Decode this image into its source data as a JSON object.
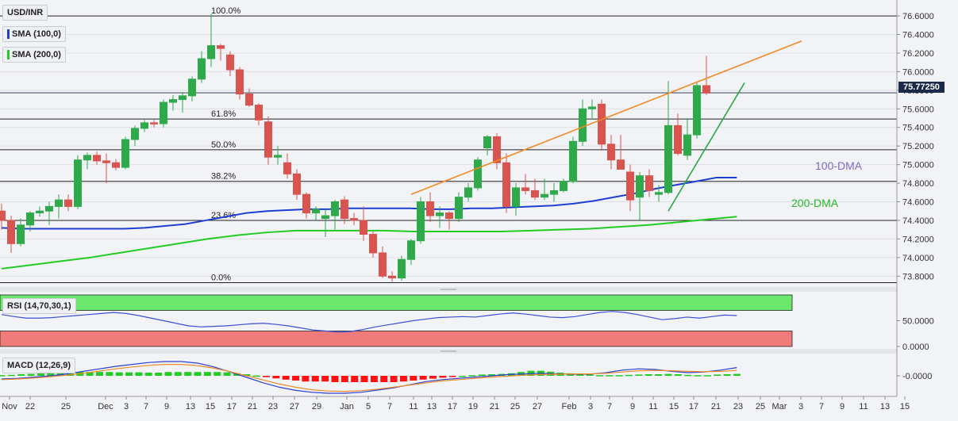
{
  "legend": {
    "symbol": "USD/INR",
    "sma100": "SMA (100,0)",
    "sma200": "SMA (200,0)",
    "rsi": "RSI (14,70,30,1)",
    "macd": "MACD (12,26,9)"
  },
  "colors": {
    "bull": "#2eaa4a",
    "bear": "#d9534f",
    "sma100": "#1c3fd1",
    "sma200": "#22cc22",
    "channel": "#f08a24",
    "support": "#2aa845",
    "rsi_band_high": "#6be86b",
    "rsi_band_low": "#f07b7b",
    "price_tag": "#1b2a4a"
  },
  "annotations": {
    "dma100": "100-DMA",
    "dma200": "200-DMA",
    "last_price": "75.77250",
    "rsi_level": "50.0000",
    "rsi_zero": "0.0000",
    "macd_level": "-0.0000"
  },
  "chart_data": [
    {
      "type": "candlestick",
      "title": "USD/INR",
      "y_ticks": [
        "76.6000",
        "76.4000",
        "76.2000",
        "76.0000",
        "75.8000",
        "75.6000",
        "75.4000",
        "75.2000",
        "75.0000",
        "74.8000",
        "74.6000",
        "74.4000",
        "74.2000",
        "74.0000",
        "73.8000"
      ],
      "ylim": [
        73.7,
        76.72
      ],
      "x_ticks": [
        "Nov",
        "22",
        "25",
        "Dec",
        "3",
        "7",
        "9",
        "13",
        "15",
        "17",
        "21",
        "23",
        "27",
        "29",
        "Jan",
        "5",
        "7",
        "11",
        "13",
        "17",
        "19",
        "21",
        "25",
        "27",
        "Feb",
        "3",
        "7",
        "9",
        "11",
        "15",
        "17",
        "21",
        "23",
        "25",
        "Mar",
        "3",
        "7",
        "9",
        "11",
        "13",
        "15"
      ],
      "fibonacci": [
        {
          "label": "100.0%",
          "value": 76.6
        },
        {
          "label": "61.8%",
          "value": 75.49
        },
        {
          "label": "50.0%",
          "value": 75.16
        },
        {
          "label": "38.2%",
          "value": 74.82
        },
        {
          "label": "23.6%",
          "value": 74.4
        },
        {
          "label": "0.0%",
          "value": 73.73
        }
      ],
      "last_price": 75.7725,
      "candles": [
        {
          "o": 74.5,
          "h": 74.58,
          "l": 74.3,
          "c": 74.4
        },
        {
          "o": 74.4,
          "h": 74.45,
          "l": 74.05,
          "c": 74.15
        },
        {
          "o": 74.15,
          "h": 74.42,
          "l": 74.12,
          "c": 74.35
        },
        {
          "o": 74.35,
          "h": 74.5,
          "l": 74.28,
          "c": 74.48
        },
        {
          "o": 74.48,
          "h": 74.55,
          "l": 74.44,
          "c": 74.5
        },
        {
          "o": 74.5,
          "h": 74.6,
          "l": 74.35,
          "c": 74.55
        },
        {
          "o": 74.55,
          "h": 74.68,
          "l": 74.42,
          "c": 74.62
        },
        {
          "o": 74.62,
          "h": 74.68,
          "l": 74.5,
          "c": 74.55
        },
        {
          "o": 74.55,
          "h": 75.1,
          "l": 74.52,
          "c": 75.05
        },
        {
          "o": 75.05,
          "h": 75.13,
          "l": 74.95,
          "c": 75.1
        },
        {
          "o": 75.1,
          "h": 75.14,
          "l": 75.0,
          "c": 75.04
        },
        {
          "o": 75.04,
          "h": 75.12,
          "l": 74.8,
          "c": 75.02
        },
        {
          "o": 75.02,
          "h": 75.06,
          "l": 74.94,
          "c": 74.97
        },
        {
          "o": 74.97,
          "h": 75.3,
          "l": 74.95,
          "c": 75.27
        },
        {
          "o": 75.27,
          "h": 75.42,
          "l": 75.2,
          "c": 75.39
        },
        {
          "o": 75.39,
          "h": 75.48,
          "l": 75.35,
          "c": 75.45
        },
        {
          "o": 75.45,
          "h": 75.48,
          "l": 75.4,
          "c": 75.44
        },
        {
          "o": 75.44,
          "h": 75.7,
          "l": 75.4,
          "c": 75.67
        },
        {
          "o": 75.67,
          "h": 75.75,
          "l": 75.58,
          "c": 75.7
        },
        {
          "o": 75.7,
          "h": 75.78,
          "l": 75.56,
          "c": 75.74
        },
        {
          "o": 75.74,
          "h": 75.95,
          "l": 75.68,
          "c": 75.92
        },
        {
          "o": 75.92,
          "h": 76.22,
          "l": 75.88,
          "c": 76.14
        },
        {
          "o": 76.14,
          "h": 76.62,
          "l": 76.05,
          "c": 76.28
        },
        {
          "o": 76.28,
          "h": 76.3,
          "l": 76.12,
          "c": 76.25
        },
        {
          "o": 76.18,
          "h": 76.22,
          "l": 75.95,
          "c": 76.02
        },
        {
          "o": 76.02,
          "h": 76.05,
          "l": 75.7,
          "c": 75.76
        },
        {
          "o": 75.76,
          "h": 75.82,
          "l": 75.62,
          "c": 75.64
        },
        {
          "o": 75.64,
          "h": 75.66,
          "l": 75.42,
          "c": 75.48
        },
        {
          "o": 75.46,
          "h": 75.52,
          "l": 75.0,
          "c": 75.08
        },
        {
          "o": 75.08,
          "h": 75.2,
          "l": 75.0,
          "c": 75.1
        },
        {
          "o": 75.02,
          "h": 75.12,
          "l": 74.85,
          "c": 74.9
        },
        {
          "o": 74.9,
          "h": 74.95,
          "l": 74.62,
          "c": 74.68
        },
        {
          "o": 74.68,
          "h": 74.7,
          "l": 74.42,
          "c": 74.48
        },
        {
          "o": 74.48,
          "h": 74.55,
          "l": 74.4,
          "c": 74.52
        },
        {
          "o": 74.42,
          "h": 74.52,
          "l": 74.22,
          "c": 74.45
        },
        {
          "o": 74.45,
          "h": 74.62,
          "l": 74.3,
          "c": 74.6
        },
        {
          "o": 74.62,
          "h": 74.66,
          "l": 74.36,
          "c": 74.42
        },
        {
          "o": 74.42,
          "h": 74.48,
          "l": 74.35,
          "c": 74.4
        },
        {
          "o": 74.4,
          "h": 74.55,
          "l": 74.18,
          "c": 74.25
        },
        {
          "o": 74.25,
          "h": 74.28,
          "l": 74.0,
          "c": 74.05
        },
        {
          "o": 74.05,
          "h": 74.12,
          "l": 73.78,
          "c": 73.8
        },
        {
          "o": 73.8,
          "h": 73.85,
          "l": 73.74,
          "c": 73.78
        },
        {
          "o": 73.78,
          "h": 74.02,
          "l": 73.75,
          "c": 73.98
        },
        {
          "o": 73.98,
          "h": 74.2,
          "l": 73.92,
          "c": 74.18
        },
        {
          "o": 74.18,
          "h": 74.65,
          "l": 74.15,
          "c": 74.6
        },
        {
          "o": 74.6,
          "h": 74.7,
          "l": 74.38,
          "c": 74.45
        },
        {
          "o": 74.45,
          "h": 74.55,
          "l": 74.32,
          "c": 74.48
        },
        {
          "o": 74.48,
          "h": 74.5,
          "l": 74.3,
          "c": 74.42
        },
        {
          "o": 74.42,
          "h": 74.7,
          "l": 74.38,
          "c": 74.65
        },
        {
          "o": 74.65,
          "h": 74.8,
          "l": 74.6,
          "c": 74.75
        },
        {
          "o": 74.75,
          "h": 75.08,
          "l": 74.72,
          "c": 75.05
        },
        {
          "o": 75.18,
          "h": 75.32,
          "l": 75.1,
          "c": 75.3
        },
        {
          "o": 75.3,
          "h": 75.34,
          "l": 74.95,
          "c": 75.02
        },
        {
          "o": 75.02,
          "h": 75.12,
          "l": 74.48,
          "c": 74.55
        },
        {
          "o": 74.55,
          "h": 74.8,
          "l": 74.45,
          "c": 74.75
        },
        {
          "o": 74.75,
          "h": 74.9,
          "l": 74.68,
          "c": 74.72
        },
        {
          "o": 74.72,
          "h": 74.85,
          "l": 74.62,
          "c": 74.65
        },
        {
          "o": 74.65,
          "h": 74.85,
          "l": 74.62,
          "c": 74.68
        },
        {
          "o": 74.68,
          "h": 74.8,
          "l": 74.6,
          "c": 74.72
        },
        {
          "o": 74.72,
          "h": 74.85,
          "l": 74.7,
          "c": 74.82
        },
        {
          "o": 74.82,
          "h": 75.3,
          "l": 74.8,
          "c": 75.25
        },
        {
          "o": 75.25,
          "h": 75.7,
          "l": 75.2,
          "c": 75.6
        },
        {
          "o": 75.6,
          "h": 75.7,
          "l": 75.5,
          "c": 75.62
        },
        {
          "o": 75.65,
          "h": 75.7,
          "l": 75.15,
          "c": 75.22
        },
        {
          "o": 75.22,
          "h": 75.32,
          "l": 74.95,
          "c": 75.05
        },
        {
          "o": 75.05,
          "h": 75.32,
          "l": 74.95,
          "c": 74.95
        },
        {
          "o": 74.92,
          "h": 75.0,
          "l": 74.5,
          "c": 74.62
        },
        {
          "o": 74.65,
          "h": 74.92,
          "l": 74.4,
          "c": 74.88
        },
        {
          "o": 74.88,
          "h": 74.95,
          "l": 74.65,
          "c": 74.72
        },
        {
          "o": 74.68,
          "h": 74.78,
          "l": 74.6,
          "c": 74.7
        },
        {
          "o": 74.7,
          "h": 75.9,
          "l": 74.68,
          "c": 75.42
        },
        {
          "o": 75.42,
          "h": 75.55,
          "l": 75.1,
          "c": 75.12
        },
        {
          "o": 75.1,
          "h": 75.5,
          "l": 75.05,
          "c": 75.32
        },
        {
          "o": 75.32,
          "h": 75.88,
          "l": 75.28,
          "c": 75.85
        },
        {
          "o": 75.85,
          "h": 76.17,
          "l": 75.75,
          "c": 75.77
        }
      ],
      "sma100": [
        74.32,
        74.31,
        74.31,
        74.31,
        74.31,
        74.31,
        74.31,
        74.32,
        74.34,
        74.36,
        74.4,
        74.44,
        74.48,
        74.5,
        74.51,
        74.52,
        74.52,
        74.53,
        74.53,
        74.53,
        74.53,
        74.52,
        74.52,
        74.53,
        74.53,
        74.54,
        74.55,
        74.56,
        74.58,
        74.61,
        74.65,
        74.69,
        74.74,
        74.78,
        74.82,
        74.86,
        74.86
      ],
      "sma200": [
        73.88,
        73.92,
        73.96,
        74.0,
        74.05,
        74.1,
        74.15,
        74.2,
        74.24,
        74.27,
        74.29,
        74.29,
        74.29,
        74.29,
        74.28,
        74.28,
        74.28,
        74.28,
        74.29,
        74.3,
        74.31,
        74.33,
        74.35,
        74.38,
        74.41,
        74.44
      ],
      "trendlines": [
        {
          "name": "rising-channel",
          "from": [
            43,
            74.68
          ],
          "to": [
            84,
            76.33
          ]
        },
        {
          "name": "support-line",
          "from": [
            70,
            74.5
          ],
          "to": [
            78,
            75.88
          ]
        }
      ]
    },
    {
      "type": "line",
      "title": "RSI (14,70,30,1)",
      "ylabel": "",
      "y_ticks": [
        "50.0000",
        "0.0000"
      ],
      "values": [
        62,
        58,
        55,
        55,
        56,
        58,
        60,
        62,
        64,
        66,
        64,
        60,
        55,
        50,
        45,
        40,
        38,
        39,
        40,
        42,
        44,
        45,
        43,
        40,
        36,
        32,
        30,
        28,
        29,
        33,
        38,
        42,
        46,
        50,
        53,
        56,
        57,
        58,
        57,
        60,
        63,
        65,
        63,
        60,
        57,
        56,
        58,
        62,
        66,
        68,
        66,
        62,
        57,
        52,
        54,
        57,
        55,
        58,
        61,
        60
      ]
    },
    {
      "type": "bar",
      "title": "MACD (12,26,9)",
      "y_ticks": [
        "-0.0000"
      ],
      "histogram": [
        0.02,
        0.03,
        0.05,
        0.06,
        0.08,
        0.1,
        0.11,
        0.11,
        0.12,
        0.12,
        0.12,
        0.12,
        0.11,
        0.11,
        0.11,
        0.1,
        0.1,
        0.12,
        0.12,
        0.12,
        0.12,
        0.12,
        0.12,
        0.11,
        0.08,
        0.05,
        0.01,
        -0.04,
        -0.08,
        -0.12,
        -0.15,
        -0.18,
        -0.18,
        -0.18,
        -0.2,
        -0.2,
        -0.2,
        -0.2,
        -0.2,
        -0.2,
        -0.2,
        -0.18,
        -0.15,
        -0.12,
        -0.09,
        -0.06,
        -0.03,
        0.0,
        0.02,
        0.04,
        0.05,
        0.06,
        0.08,
        0.12,
        0.16,
        0.16,
        0.13,
        0.1,
        0.08,
        0.06,
        0.04,
        0.02,
        0.02,
        0.02,
        0.03,
        0.04,
        0.05,
        0.05,
        0.06,
        0.05,
        0.03,
        0.02,
        0.02,
        0.04,
        0.05,
        0.06
      ],
      "macd_line": [
        -0.1,
        -0.08,
        -0.04,
        0.0,
        0.06,
        0.14,
        0.22,
        0.3,
        0.36,
        0.42,
        0.45,
        0.45,
        0.4,
        0.28,
        0.12,
        -0.05,
        -0.22,
        -0.36,
        -0.46,
        -0.52,
        -0.55,
        -0.55,
        -0.52,
        -0.45,
        -0.38,
        -0.28,
        -0.18,
        -0.12,
        -0.08,
        -0.04,
        0.0,
        0.04,
        0.06,
        0.08,
        0.06,
        0.05,
        0.05,
        0.1,
        0.18,
        0.22,
        0.2,
        0.14,
        0.1,
        0.12,
        0.18,
        0.26
      ],
      "signal_line": [
        -0.12,
        -0.1,
        -0.07,
        -0.03,
        0.02,
        0.08,
        0.15,
        0.22,
        0.28,
        0.33,
        0.36,
        0.36,
        0.32,
        0.24,
        0.13,
        0.0,
        -0.13,
        -0.26,
        -0.36,
        -0.44,
        -0.48,
        -0.49,
        -0.47,
        -0.42,
        -0.36,
        -0.29,
        -0.22,
        -0.16,
        -0.12,
        -0.08,
        -0.04,
        -0.01,
        0.02,
        0.04,
        0.05,
        0.06,
        0.06,
        0.08,
        0.12,
        0.16,
        0.17,
        0.16,
        0.14,
        0.13,
        0.14,
        0.17
      ]
    }
  ]
}
